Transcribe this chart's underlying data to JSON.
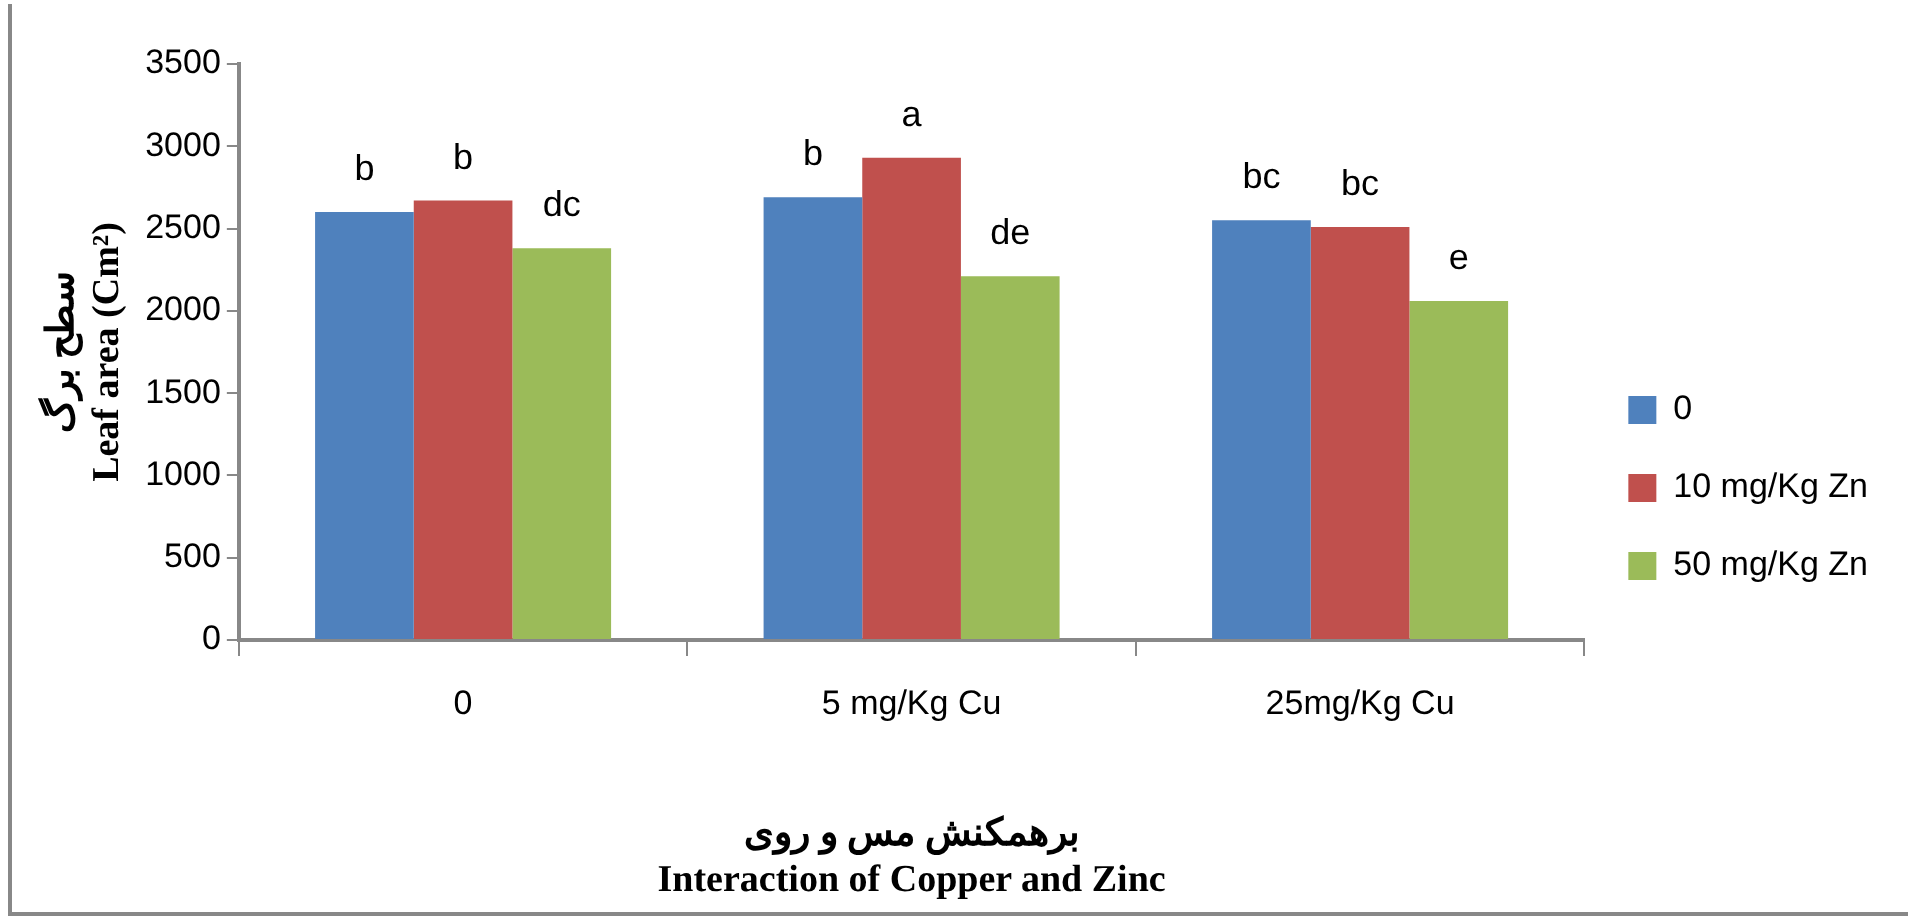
{
  "chart_data": {
    "type": "bar",
    "xlabel": "برهمکنش مس و روی\nInteraction of Copper and Zinc",
    "ylabel": "سطح برگ\nLeaf area (Cm²)",
    "categories": [
      "0",
      "5 mg/Kg Cu",
      "25mg/Kg Cu"
    ],
    "series": [
      {
        "name": "0",
        "color": "#4f81bd",
        "values": [
          2600,
          2690,
          2550
        ],
        "value_labels": [
          "b",
          "b",
          "bc"
        ]
      },
      {
        "name": "10 mg/Kg Zn",
        "color": "#c0504d",
        "values": [
          2670,
          2930,
          2510
        ],
        "value_labels": [
          "b",
          "a",
          "bc"
        ]
      },
      {
        "name": "50 mg/Kg Zn",
        "color": "#9bbb59",
        "values": [
          2380,
          2210,
          2060
        ],
        "value_labels": [
          "dc",
          "de",
          "e"
        ]
      }
    ],
    "ylim": [
      0,
      3500
    ],
    "yticks": [
      0,
      500,
      1000,
      1500,
      2000,
      2500,
      3000,
      3500
    ],
    "grid": false,
    "legend": "right"
  }
}
